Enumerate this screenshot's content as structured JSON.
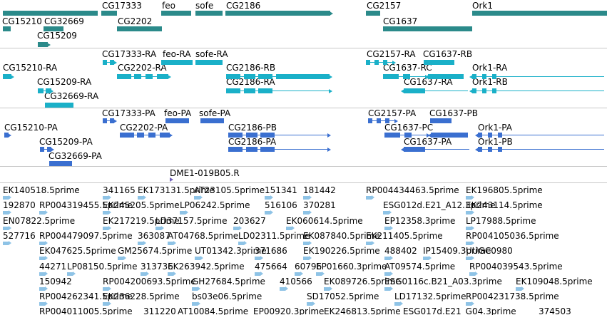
{
  "colors": {
    "gene": "#2b8a8a",
    "mrna_ra": "#1ab0c8",
    "mrna_pa": "#3a6fd0",
    "clone": "#7060b8",
    "est": "#8ec3e6",
    "divider": "#c7c7c7"
  },
  "tracks": {
    "genes": {
      "labels": [
        "CG15210",
        "CG32669",
        "CG15209",
        "CG17333",
        "feo",
        "sofe",
        "CG2186",
        "CG2202",
        "CG2157",
        "CG1637",
        "Ork1"
      ]
    },
    "transcripts_ra": {
      "labels": [
        "CG17333-RA",
        "feo-RA",
        "sofe-RA",
        "CG2157-RA",
        "CG1637-RB",
        "CG15210-RA",
        "CG2202-RA",
        "CG2186-RB",
        "CG1637-RC",
        "Ork1-RA",
        "CG15209-RA",
        "CG2186-RA",
        "CG1637-RA",
        "Ork1-RB",
        "CG32669-RA"
      ]
    },
    "transcripts_pa": {
      "labels": [
        "CG17333-PA",
        "feo-PA",
        "sofe-PA",
        "CG2157-PA",
        "CG1637-PB",
        "CG15210-PA",
        "CG2202-PA",
        "CG2186-PB",
        "CG1637-PC",
        "Ork1-PA",
        "CG15209-PA",
        "CG2186-PA",
        "CG1637-PA",
        "Ork1-PB",
        "CG32669-PA"
      ]
    },
    "clone": {
      "labels": [
        "DME1-019B05.R"
      ]
    },
    "ests": {
      "rows": [
        [
          "EK140518.5prime",
          "341165",
          "EK173131.5prime",
          "AT23105.5prime",
          "151341",
          "181442",
          "RP004434463.5prime",
          "EK196805.5prime"
        ],
        [
          "192870",
          "RP004319455.5prime",
          "EK245205.5prime",
          "LP06242.5prime",
          "516106",
          "370281",
          "ESG012d.E21_A12.3prime",
          "EK243114.5prime"
        ],
        [
          "EN07822.5prime",
          "EK217219.5prime",
          "LD37157.5prime",
          "203627",
          "EK060614.5prime",
          "EP12358.3prime",
          "LP17988.5prime"
        ],
        [
          "527716",
          "RP004479097.5prime",
          "363087",
          "AT04768.5prime",
          "LD02311.5prime",
          "EK087840.5prime",
          "EK211405.5prime",
          "RP004105036.5prime"
        ],
        [
          "EK047625.5prime",
          "GM25674.5prime",
          "UT01342.3prime",
          "371686",
          "EK190226.5prime",
          "488402",
          "IP15409.3prime",
          "UUGC0980"
        ],
        [
          "44271",
          "LP08150.5prime",
          "313736",
          "EK263942.5prime",
          "475664",
          "60796",
          "EP01660.3prime",
          "AT09574.5prime",
          "RP004039543.5prime"
        ],
        [
          "150942",
          "RP004200693.5prime",
          "GH27684.5prime",
          "410566",
          "EK089726.5prime",
          "ESG0116c.B21_A03.3prime",
          "EK109048.5prime"
        ],
        [
          "RP004262341.5prime",
          "EK236228.5prime",
          "bs03e06.5prime",
          "SD17052.5prime",
          "LD17132.5prime",
          "RP004231738.5prime"
        ],
        [
          "RP004011005.5prime",
          "311220",
          "AT10084.5prime",
          "EP00920.3prime",
          "EK246813.5prime",
          "ESG017d.E21_G04.3prime",
          "374503"
        ]
      ]
    }
  }
}
